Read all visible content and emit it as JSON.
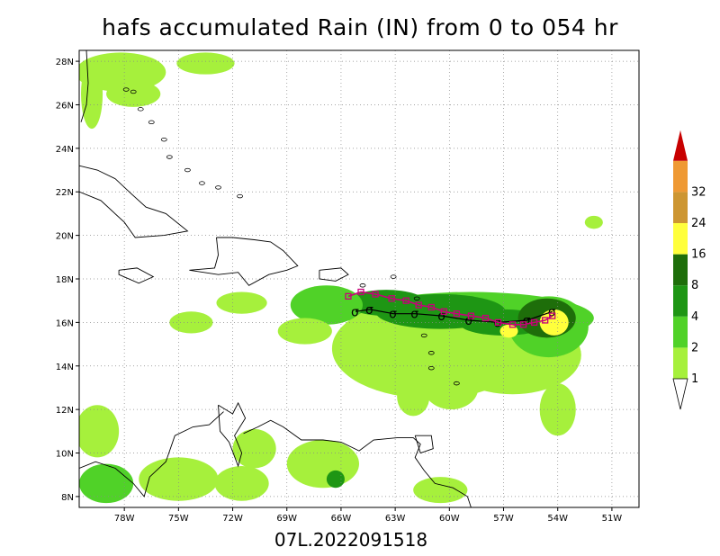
{
  "chart_data": {
    "type": "heatmap",
    "title": "hafs accumulated Rain (IN) from 0 to 054 hr",
    "footer": "07L.2022091518",
    "x_ticks": [
      "78W",
      "75W",
      "72W",
      "69W",
      "66W",
      "63W",
      "60W",
      "57W",
      "54W",
      "51W"
    ],
    "y_ticks": [
      "28N",
      "26N",
      "24N",
      "22N",
      "20N",
      "18N",
      "16N",
      "14N",
      "12N",
      "10N",
      "8N"
    ],
    "xlim": [
      -80.5,
      -49.5
    ],
    "ylim": [
      7.5,
      28.5
    ],
    "grid": true,
    "colorbar": {
      "levels": [
        "1",
        "2",
        "4",
        "8",
        "16",
        "24",
        "32"
      ],
      "colors": [
        "#a6f03c",
        "#50d228",
        "#1e9614",
        "#1e6e0a",
        "#ffff3c",
        "#cd9632",
        "#ef9933",
        "#c80000"
      ]
    },
    "track_forecast": [
      {
        "lon": -65.6,
        "lat": 17.2
      },
      {
        "lon": -64.9,
        "lat": 17.4
      },
      {
        "lon": -64.1,
        "lat": 17.3
      },
      {
        "lon": -63.2,
        "lat": 17.1
      },
      {
        "lon": -62.4,
        "lat": 17.0
      },
      {
        "lon": -61.7,
        "lat": 16.8
      },
      {
        "lon": -61.0,
        "lat": 16.7
      },
      {
        "lon": -60.3,
        "lat": 16.5
      },
      {
        "lon": -59.6,
        "lat": 16.4
      },
      {
        "lon": -58.8,
        "lat": 16.3
      },
      {
        "lon": -58.0,
        "lat": 16.2
      },
      {
        "lon": -57.3,
        "lat": 16.0
      },
      {
        "lon": -56.5,
        "lat": 15.9
      },
      {
        "lon": -55.9,
        "lat": 15.9
      },
      {
        "lon": -55.3,
        "lat": 16.0
      },
      {
        "lon": -54.7,
        "lat": 16.1
      },
      {
        "lon": -54.3,
        "lat": 16.3
      }
    ],
    "track_observed": [
      {
        "lon": -65.2,
        "lat": 16.5
      },
      {
        "lon": -64.4,
        "lat": 16.6
      },
      {
        "lon": -63.1,
        "lat": 16.4
      },
      {
        "lon": -61.9,
        "lat": 16.4
      },
      {
        "lon": -60.4,
        "lat": 16.3
      },
      {
        "lon": -58.9,
        "lat": 16.1
      },
      {
        "lon": -57.3,
        "lat": 16.0
      },
      {
        "lon": -55.7,
        "lat": 16.1
      },
      {
        "lon": -54.3,
        "lat": 16.5
      }
    ],
    "rain_areas": [
      {
        "lon": -58.8,
        "lat": 16.2,
        "rx": 6.8,
        "ry": 1.2,
        "level": 1
      },
      {
        "lon": -61.0,
        "lat": 14.8,
        "rx": 5.5,
        "ry": 2.3,
        "level": 0
      },
      {
        "lon": -56.5,
        "lat": 14.5,
        "rx": 3.8,
        "ry": 1.8,
        "level": 0
      },
      {
        "lon": -54.5,
        "lat": 15.8,
        "rx": 2.2,
        "ry": 1.4,
        "level": 1
      },
      {
        "lon": -60.5,
        "lat": 16.5,
        "rx": 3.6,
        "ry": 0.8,
        "level": 2
      },
      {
        "lon": -63.5,
        "lat": 16.9,
        "rx": 2.2,
        "ry": 0.6,
        "level": 2
      },
      {
        "lon": -57.0,
        "lat": 16.0,
        "rx": 2.5,
        "ry": 0.6,
        "level": 2
      },
      {
        "lon": -54.6,
        "lat": 16.2,
        "rx": 1.6,
        "ry": 0.9,
        "level": 3
      },
      {
        "lon": -54.2,
        "lat": 16.0,
        "rx": 0.8,
        "ry": 0.6,
        "level": 4
      },
      {
        "lon": -56.7,
        "lat": 15.6,
        "rx": 0.5,
        "ry": 0.3,
        "level": 4
      },
      {
        "lon": -59.9,
        "lat": 13.0,
        "rx": 1.5,
        "ry": 1.0,
        "level": 0
      },
      {
        "lon": -62.0,
        "lat": 12.6,
        "rx": 0.9,
        "ry": 0.9,
        "level": 0
      },
      {
        "lon": -66.8,
        "lat": 16.8,
        "rx": 2.0,
        "ry": 0.9,
        "level": 1
      },
      {
        "lon": -71.5,
        "lat": 16.9,
        "rx": 1.4,
        "ry": 0.5,
        "level": 0
      },
      {
        "lon": -74.3,
        "lat": 16.0,
        "rx": 1.2,
        "ry": 0.5,
        "level": 0
      },
      {
        "lon": -68.0,
        "lat": 15.6,
        "rx": 1.5,
        "ry": 0.6,
        "level": 0
      },
      {
        "lon": -78.2,
        "lat": 27.5,
        "rx": 2.5,
        "ry": 0.9,
        "level": 0
      },
      {
        "lon": -77.5,
        "lat": 26.5,
        "rx": 1.5,
        "ry": 0.6,
        "level": 0
      },
      {
        "lon": -73.5,
        "lat": 27.9,
        "rx": 1.6,
        "ry": 0.5,
        "level": 0
      },
      {
        "lon": -79.8,
        "lat": 26.5,
        "rx": 0.6,
        "ry": 1.6,
        "level": 0
      },
      {
        "lon": -79.5,
        "lat": 11.0,
        "rx": 1.2,
        "ry": 1.2,
        "level": 0
      },
      {
        "lon": -79.0,
        "lat": 8.6,
        "rx": 1.5,
        "ry": 0.9,
        "level": 1
      },
      {
        "lon": -75.0,
        "lat": 8.8,
        "rx": 2.2,
        "ry": 1.0,
        "level": 0
      },
      {
        "lon": -71.5,
        "lat": 8.6,
        "rx": 1.5,
        "ry": 0.8,
        "level": 0
      },
      {
        "lon": -70.8,
        "lat": 10.2,
        "rx": 1.2,
        "ry": 0.9,
        "level": 0
      },
      {
        "lon": -67.0,
        "lat": 9.5,
        "rx": 2.0,
        "ry": 1.1,
        "level": 0
      },
      {
        "lon": -66.3,
        "lat": 8.8,
        "rx": 0.5,
        "ry": 0.4,
        "level": 2
      },
      {
        "lon": -60.5,
        "lat": 8.3,
        "rx": 1.5,
        "ry": 0.6,
        "level": 0
      },
      {
        "lon": -54.0,
        "lat": 12.0,
        "rx": 1.0,
        "ry": 1.2,
        "level": 0
      },
      {
        "lon": -52.0,
        "lat": 20.6,
        "rx": 0.5,
        "ry": 0.3,
        "level": 0
      }
    ],
    "coastlines": [
      [
        [
          -80.1,
          28.5
        ],
        [
          -80.0,
          27.0
        ],
        [
          -80.1,
          26.0
        ],
        [
          -80.4,
          25.2
        ]
      ],
      [
        [
          -80.5,
          23.2
        ],
        [
          -79.5,
          23.0
        ],
        [
          -78.5,
          22.6
        ],
        [
          -77.6,
          21.9
        ],
        [
          -76.8,
          21.3
        ],
        [
          -75.7,
          21.0
        ],
        [
          -74.5,
          20.2
        ],
        [
          -75.8,
          20.0
        ],
        [
          -77.4,
          19.9
        ],
        [
          -78.0,
          20.6
        ],
        [
          -79.3,
          21.6
        ],
        [
          -80.5,
          22.0
        ]
      ],
      [
        [
          -72.9,
          19.9
        ],
        [
          -72.0,
          19.9
        ],
        [
          -70.8,
          19.8
        ],
        [
          -69.9,
          19.7
        ],
        [
          -69.2,
          19.3
        ],
        [
          -68.4,
          18.6
        ],
        [
          -69.0,
          18.4
        ],
        [
          -70.0,
          18.2
        ],
        [
          -71.1,
          17.7
        ],
        [
          -71.7,
          18.3
        ],
        [
          -72.8,
          18.2
        ],
        [
          -74.4,
          18.4
        ],
        [
          -73.0,
          18.5
        ],
        [
          -72.8,
          19.1
        ],
        [
          -72.9,
          19.9
        ]
      ],
      [
        [
          -67.2,
          18.4
        ],
        [
          -66.0,
          18.5
        ],
        [
          -65.6,
          18.2
        ],
        [
          -66.3,
          17.9
        ],
        [
          -67.2,
          18.0
        ],
        [
          -67.2,
          18.4
        ]
      ],
      [
        [
          -78.3,
          18.4
        ],
        [
          -77.3,
          18.5
        ],
        [
          -76.4,
          18.1
        ],
        [
          -77.2,
          17.8
        ],
        [
          -78.3,
          18.2
        ],
        [
          -78.3,
          18.4
        ]
      ],
      [
        [
          -72.8,
          12.2
        ],
        [
          -72.0,
          11.8
        ],
        [
          -71.7,
          12.3
        ],
        [
          -71.3,
          11.6
        ],
        [
          -71.9,
          10.8
        ],
        [
          -71.5,
          10.0
        ],
        [
          -71.7,
          9.4
        ],
        [
          -72.2,
          10.5
        ],
        [
          -72.7,
          11.0
        ],
        [
          -72.8,
          12.2
        ]
      ],
      [
        [
          -80.5,
          9.3
        ],
        [
          -79.6,
          9.6
        ],
        [
          -78.5,
          9.3
        ],
        [
          -77.5,
          8.6
        ],
        [
          -76.9,
          8.0
        ],
        [
          -76.6,
          8.9
        ],
        [
          -75.7,
          9.6
        ],
        [
          -75.2,
          10.8
        ],
        [
          -74.2,
          11.2
        ],
        [
          -73.3,
          11.3
        ],
        [
          -72.5,
          11.9
        ]
      ],
      [
        [
          -71.4,
          10.9
        ],
        [
          -70.6,
          11.2
        ],
        [
          -69.9,
          11.5
        ],
        [
          -69.2,
          11.2
        ],
        [
          -68.2,
          10.6
        ],
        [
          -67.0,
          10.6
        ],
        [
          -66.0,
          10.5
        ],
        [
          -65.0,
          10.1
        ],
        [
          -64.2,
          10.6
        ],
        [
          -62.9,
          10.7
        ],
        [
          -62.0,
          10.7
        ],
        [
          -61.6,
          10.4
        ],
        [
          -61.9,
          9.8
        ],
        [
          -61.4,
          9.2
        ],
        [
          -60.8,
          8.6
        ],
        [
          -59.8,
          8.4
        ],
        [
          -59.0,
          8.0
        ],
        [
          -58.8,
          7.5
        ]
      ],
      [
        [
          -61.9,
          10.8
        ],
        [
          -61.0,
          10.8
        ],
        [
          -60.9,
          10.2
        ],
        [
          -61.6,
          10.0
        ],
        [
          -61.9,
          10.8
        ]
      ]
    ],
    "islands": [
      [
        -77.5,
        26.6
      ],
      [
        -77.9,
        26.7
      ],
      [
        -77.1,
        25.8
      ],
      [
        -76.5,
        25.2
      ],
      [
        -75.8,
        24.4
      ],
      [
        -75.5,
        23.6
      ],
      [
        -74.5,
        23.0
      ],
      [
        -73.7,
        22.4
      ],
      [
        -72.8,
        22.2
      ],
      [
        -71.6,
        21.8
      ],
      [
        -61.8,
        17.1
      ],
      [
        -61.0,
        14.6
      ],
      [
        -61.0,
        13.9
      ],
      [
        -59.6,
        13.2
      ],
      [
        -61.4,
        15.4
      ],
      [
        -64.8,
        17.7
      ],
      [
        -63.1,
        18.1
      ]
    ]
  }
}
